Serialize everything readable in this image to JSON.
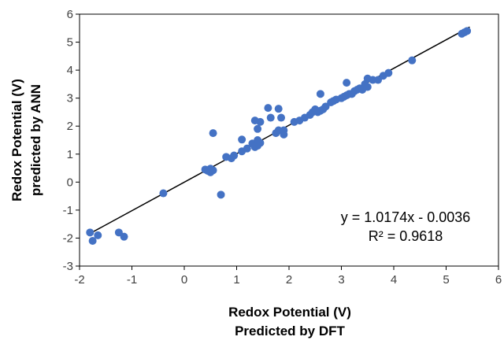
{
  "chart_data": {
    "type": "scatter",
    "xlabel": [
      "Redox Potential (V)",
      "Predicted by DFT"
    ],
    "ylabel": [
      "Redox Potential (V)",
      "predicted by ANN"
    ],
    "xlim": [
      -2,
      6
    ],
    "ylim": [
      -3,
      6
    ],
    "x_ticks": [
      "-2",
      "-1",
      "0",
      "1",
      "2",
      "3",
      "4",
      "5",
      "6"
    ],
    "y_ticks": [
      "-3",
      "-2",
      "-1",
      "0",
      "1",
      "2",
      "3",
      "4",
      "5",
      "6"
    ],
    "grid": false,
    "legend": "none",
    "marker_color": "#4472C4",
    "trendline": {
      "slope": 1.0174,
      "intercept": -0.0036,
      "color": "#000000"
    },
    "annotations": [
      "y = 1.0174x - 0.0036",
      "R² = 0.9618"
    ],
    "points": [
      [
        -1.8,
        -1.8
      ],
      [
        -1.75,
        -2.1
      ],
      [
        -1.65,
        -1.9
      ],
      [
        -1.25,
        -1.8
      ],
      [
        -1.15,
        -1.95
      ],
      [
        -0.4,
        -0.4
      ],
      [
        0.4,
        0.45
      ],
      [
        0.45,
        0.4
      ],
      [
        0.5,
        0.35
      ],
      [
        0.5,
        0.48
      ],
      [
        0.55,
        0.42
      ],
      [
        0.55,
        1.75
      ],
      [
        0.7,
        -0.45
      ],
      [
        0.8,
        0.9
      ],
      [
        0.9,
        0.85
      ],
      [
        0.95,
        0.95
      ],
      [
        1.1,
        1.1
      ],
      [
        1.1,
        1.52
      ],
      [
        1.2,
        1.2
      ],
      [
        1.3,
        1.38
      ],
      [
        1.35,
        1.25
      ],
      [
        1.35,
        2.2
      ],
      [
        1.4,
        1.3
      ],
      [
        1.4,
        1.5
      ],
      [
        1.4,
        1.9
      ],
      [
        1.45,
        2.15
      ],
      [
        1.45,
        1.4
      ],
      [
        1.6,
        2.65
      ],
      [
        1.65,
        2.3
      ],
      [
        1.75,
        1.75
      ],
      [
        1.8,
        2.62
      ],
      [
        1.8,
        1.85
      ],
      [
        1.85,
        2.3
      ],
      [
        1.9,
        1.7
      ],
      [
        1.9,
        1.85
      ],
      [
        2.1,
        2.15
      ],
      [
        2.2,
        2.2
      ],
      [
        2.3,
        2.3
      ],
      [
        2.4,
        2.4
      ],
      [
        2.45,
        2.5
      ],
      [
        2.5,
        2.6
      ],
      [
        2.55,
        2.5
      ],
      [
        2.6,
        2.55
      ],
      [
        2.6,
        3.15
      ],
      [
        2.65,
        2.6
      ],
      [
        2.7,
        2.7
      ],
      [
        2.8,
        2.85
      ],
      [
        2.85,
        2.9
      ],
      [
        2.9,
        2.95
      ],
      [
        3.0,
        3.0
      ],
      [
        3.05,
        3.05
      ],
      [
        3.1,
        3.1
      ],
      [
        3.1,
        3.55
      ],
      [
        3.15,
        3.15
      ],
      [
        3.2,
        3.15
      ],
      [
        3.25,
        3.25
      ],
      [
        3.3,
        3.3
      ],
      [
        3.35,
        3.35
      ],
      [
        3.4,
        3.3
      ],
      [
        3.45,
        3.5
      ],
      [
        3.5,
        3.4
      ],
      [
        3.5,
        3.7
      ],
      [
        3.6,
        3.65
      ],
      [
        3.7,
        3.65
      ],
      [
        3.8,
        3.8
      ],
      [
        3.9,
        3.9
      ],
      [
        4.35,
        4.35
      ],
      [
        5.3,
        5.3
      ],
      [
        5.35,
        5.35
      ],
      [
        5.4,
        5.4
      ]
    ]
  }
}
